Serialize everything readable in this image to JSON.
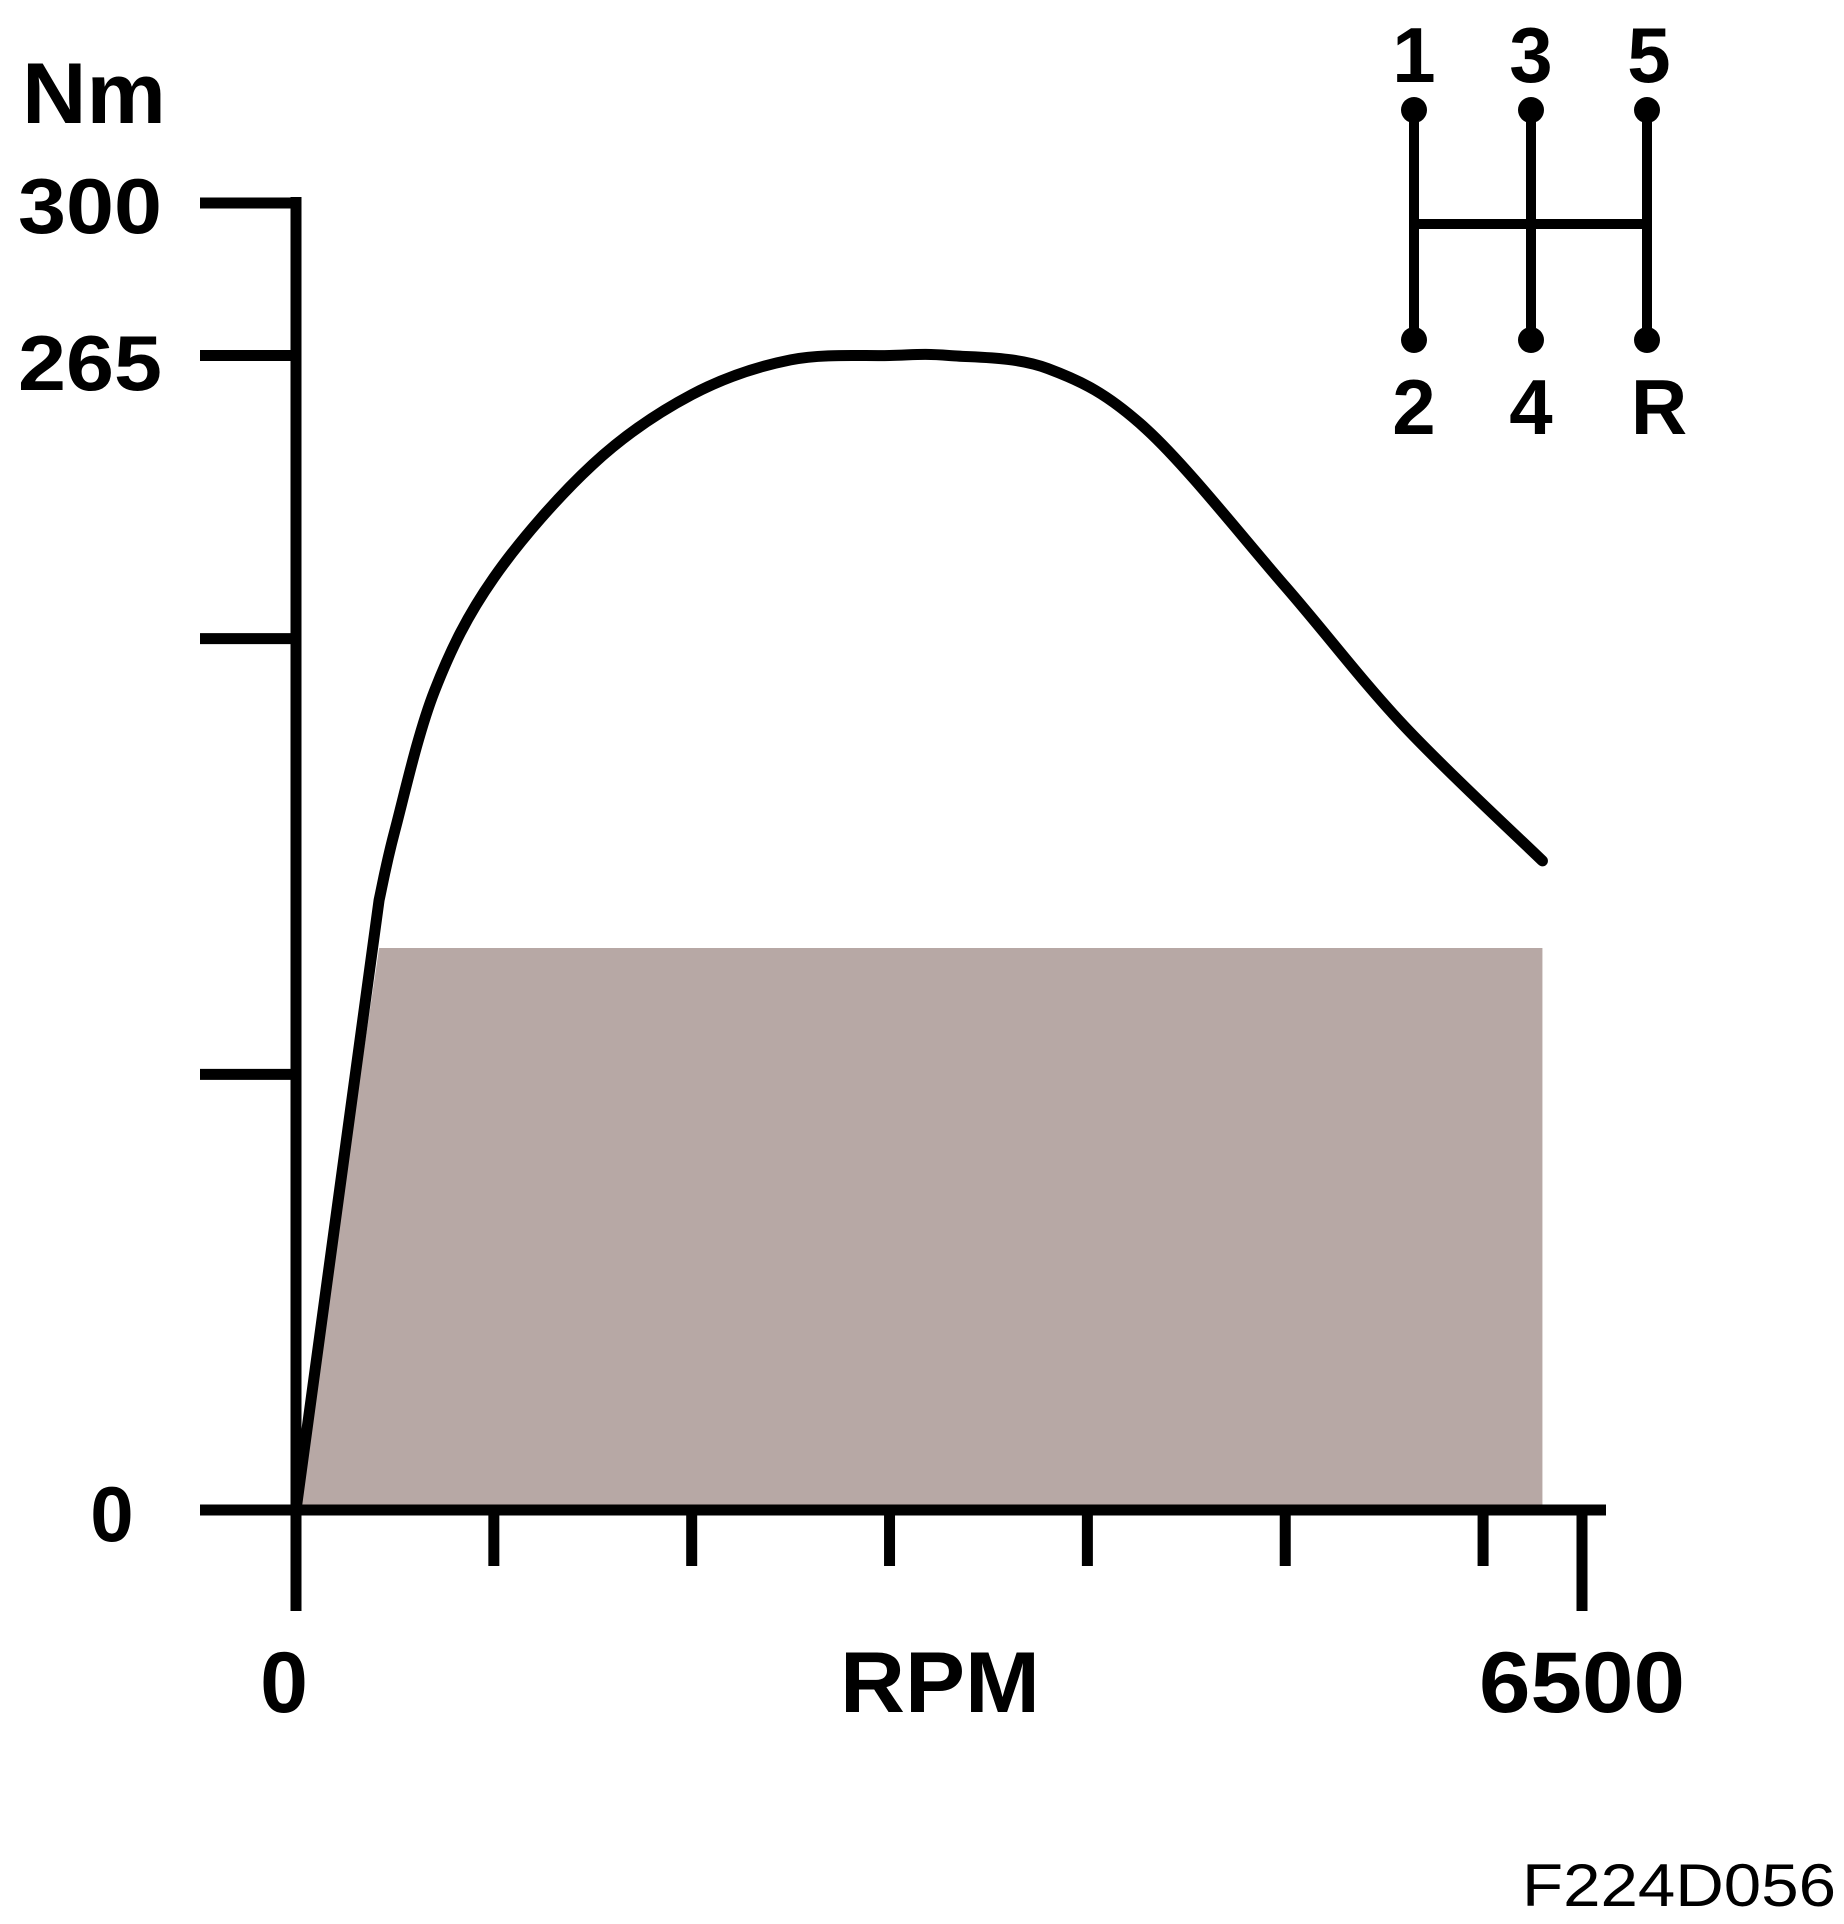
{
  "chart_data": {
    "type": "line",
    "title": "",
    "xlabel": "RPM",
    "ylabel": "Nm",
    "xlim": [
      0,
      6500
    ],
    "ylim": [
      0,
      300
    ],
    "y_tick_labels": [
      "0",
      "265",
      "300"
    ],
    "x_tick_labels": [
      "0",
      "6500"
    ],
    "y_major_ticks": [
      0,
      100,
      200,
      265,
      300
    ],
    "x_minor_ticks": [
      0,
      1000,
      2000,
      3000,
      4000,
      5000,
      6000,
      6500
    ],
    "grid": false,
    "curve": {
      "color": "#000000",
      "x": [
        0,
        420,
        500,
        700,
        1000,
        1500,
        2000,
        2500,
        3000,
        3300,
        3800,
        4300,
        5000,
        5600,
        6300
      ],
      "y": [
        0,
        140,
        156,
        188,
        214,
        240,
        256,
        264,
        265,
        265,
        262,
        248,
        212,
        180,
        149
      ]
    },
    "shaded_area": {
      "color": "#b7a8a5",
      "x": [
        0,
        420,
        6300,
        6300
      ],
      "y": [
        0,
        129,
        129,
        0
      ]
    }
  },
  "gear_diagram": {
    "top_labels": [
      "1",
      "3",
      "5"
    ],
    "bottom_labels": [
      "2",
      "4",
      "R"
    ]
  },
  "figure_code": "F224D056"
}
